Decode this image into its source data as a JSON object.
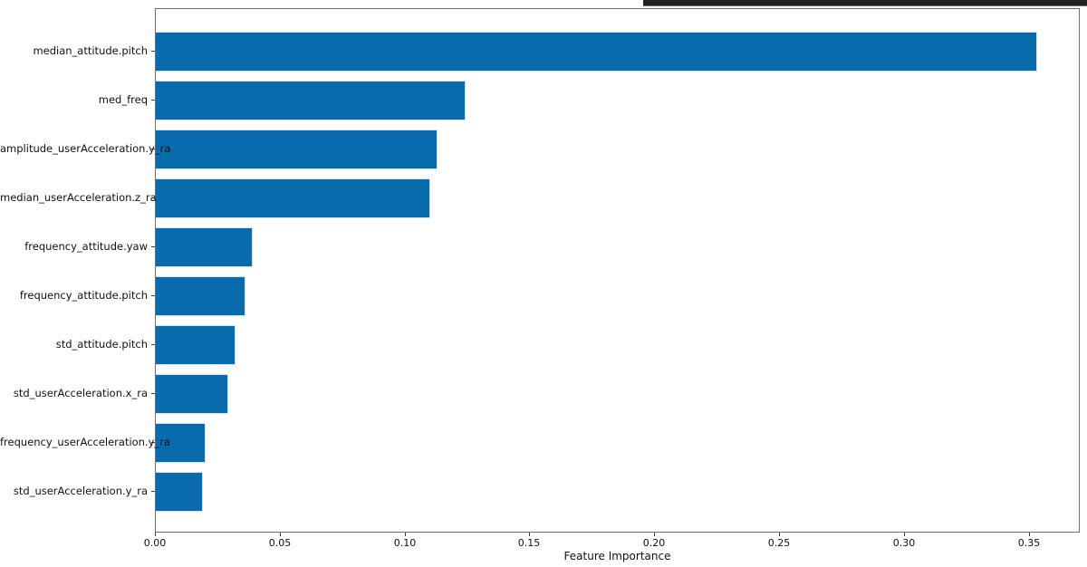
{
  "figure": {
    "background": "#ffffff",
    "top_strip_color": "#232323"
  },
  "chart_data": {
    "type": "bar",
    "orientation": "horizontal",
    "title": "",
    "xlabel": "Feature Importance",
    "ylabel": "",
    "categories": [
      "median_attitude.pitch",
      "med_freq",
      "amplitude_userAcceleration.y_ra",
      "median_userAcceleration.z_ra",
      "frequency_attitude.yaw",
      "frequency_attitude.pitch",
      "std_attitude.pitch",
      "std_userAcceleration.x_ra",
      "frequency_userAcceleration.y_ra",
      "std_userAcceleration.y_ra"
    ],
    "values": [
      0.353,
      0.124,
      0.113,
      0.11,
      0.039,
      0.036,
      0.032,
      0.029,
      0.02,
      0.019
    ],
    "xlim": [
      0,
      0.3705
    ],
    "xticks": [
      0.0,
      0.05,
      0.1,
      0.15,
      0.2,
      0.25,
      0.3,
      0.35
    ],
    "xtick_labels": [
      "0.00",
      "0.05",
      "0.10",
      "0.15",
      "0.20",
      "0.25",
      "0.30",
      "0.35"
    ],
    "bar_color": "#0a6bac",
    "bar_edge_color": "#cfe5f2",
    "grid": false,
    "legend_position": "none"
  }
}
